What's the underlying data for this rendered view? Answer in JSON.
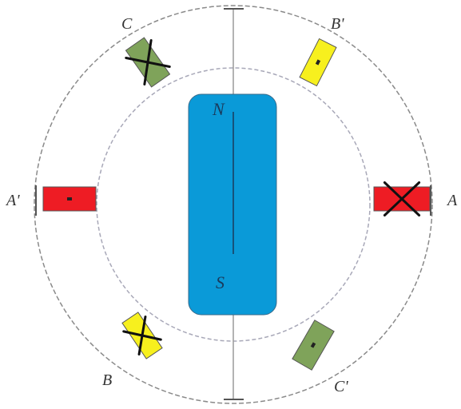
{
  "colors": {
    "phase_a": "#ee1c24",
    "phase_b": "#f7f01e",
    "phase_c": "#7fa35a",
    "magnet": "#0a9ad8",
    "outline": "#8a8a8a"
  },
  "rotor": {
    "north_label": "N",
    "south_label": "S"
  },
  "windings": [
    {
      "id": "A",
      "label": "A",
      "phase": "phase_a",
      "symbol": "cross"
    },
    {
      "id": "A'",
      "label": "A'",
      "phase": "phase_a",
      "symbol": "dot"
    },
    {
      "id": "B",
      "label": "B",
      "phase": "phase_b",
      "symbol": "cross"
    },
    {
      "id": "B'",
      "label": "B'",
      "phase": "phase_b",
      "symbol": "dot"
    },
    {
      "id": "C",
      "label": "C",
      "phase": "phase_c",
      "symbol": "cross"
    },
    {
      "id": "C'",
      "label": "C'",
      "phase": "phase_c",
      "symbol": "dot"
    }
  ]
}
